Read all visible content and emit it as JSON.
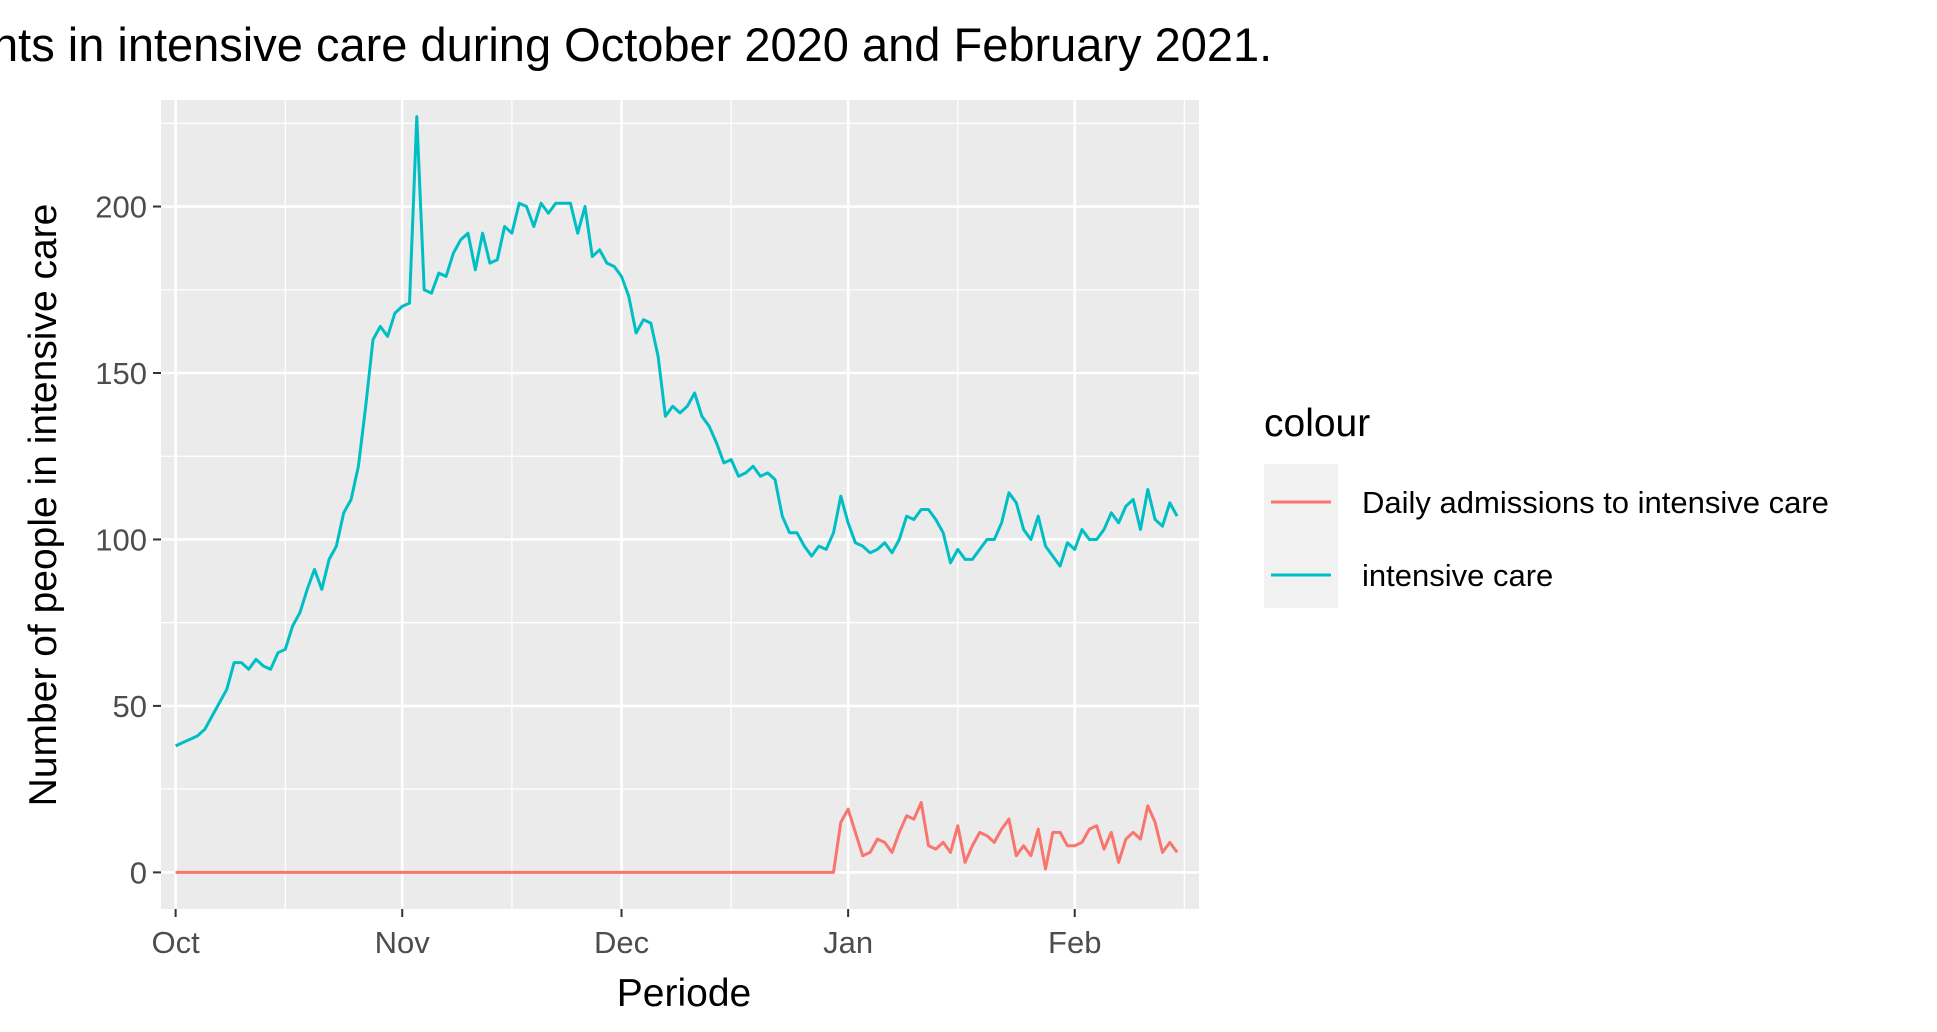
{
  "chart_data": {
    "type": "line",
    "title": "nts in intensive care during October 2020 and February 2021.",
    "xlabel": "Periode",
    "ylabel": "Number of people in intensive care",
    "x_type": "date",
    "xlim": [
      "2020-09-29",
      "2021-02-18"
    ],
    "ylim": [
      -11,
      232
    ],
    "x_ticks": [
      {
        "label": "Oct",
        "date": "2020-10-01"
      },
      {
        "label": "Nov",
        "date": "2020-11-01"
      },
      {
        "label": "Dec",
        "date": "2020-12-01"
      },
      {
        "label": "Jan",
        "date": "2021-01-01"
      },
      {
        "label": "Feb",
        "date": "2021-02-01"
      }
    ],
    "x_minor_dates": [
      "2020-10-16",
      "2020-11-16",
      "2020-12-16",
      "2021-01-16",
      "2021-02-16"
    ],
    "y_ticks": [
      0,
      50,
      100,
      150,
      200
    ],
    "y_minor": [
      25,
      75,
      125,
      175,
      225
    ],
    "grid": true,
    "legend": {
      "title": "colour",
      "position": "right"
    },
    "series": [
      {
        "name": "Daily admissions to intensive care",
        "color": "#F8766D",
        "points": [
          [
            "2020-10-01",
            0
          ],
          [
            "2020-12-30",
            0
          ],
          [
            "2020-12-31",
            15
          ],
          [
            "2021-01-01",
            19
          ],
          [
            "2021-01-02",
            12
          ],
          [
            "2021-01-03",
            5
          ],
          [
            "2021-01-04",
            6
          ],
          [
            "2021-01-05",
            10
          ],
          [
            "2021-01-06",
            9
          ],
          [
            "2021-01-07",
            6
          ],
          [
            "2021-01-08",
            12
          ],
          [
            "2021-01-09",
            17
          ],
          [
            "2021-01-10",
            16
          ],
          [
            "2021-01-11",
            21
          ],
          [
            "2021-01-12",
            8
          ],
          [
            "2021-01-13",
            7
          ],
          [
            "2021-01-14",
            9
          ],
          [
            "2021-01-15",
            6
          ],
          [
            "2021-01-16",
            14
          ],
          [
            "2021-01-17",
            3
          ],
          [
            "2021-01-18",
            8
          ],
          [
            "2021-01-19",
            12
          ],
          [
            "2021-01-20",
            11
          ],
          [
            "2021-01-21",
            9
          ],
          [
            "2021-01-22",
            13
          ],
          [
            "2021-01-23",
            16
          ],
          [
            "2021-01-24",
            5
          ],
          [
            "2021-01-25",
            8
          ],
          [
            "2021-01-26",
            5
          ],
          [
            "2021-01-27",
            13
          ],
          [
            "2021-01-28",
            1
          ],
          [
            "2021-01-29",
            12
          ],
          [
            "2021-01-30",
            12
          ],
          [
            "2021-01-31",
            8
          ],
          [
            "2021-02-01",
            8
          ],
          [
            "2021-02-02",
            9
          ],
          [
            "2021-02-03",
            13
          ],
          [
            "2021-02-04",
            14
          ],
          [
            "2021-02-05",
            7
          ],
          [
            "2021-02-06",
            12
          ],
          [
            "2021-02-07",
            3
          ],
          [
            "2021-02-08",
            10
          ],
          [
            "2021-02-09",
            12
          ],
          [
            "2021-02-10",
            10
          ],
          [
            "2021-02-11",
            20
          ],
          [
            "2021-02-12",
            15
          ],
          [
            "2021-02-13",
            6
          ],
          [
            "2021-02-14",
            9
          ],
          [
            "2021-02-15",
            6
          ]
        ]
      },
      {
        "name": "intensive care",
        "color": "#00BFC4",
        "points": [
          [
            "2020-10-01",
            38
          ],
          [
            "2020-10-02",
            39
          ],
          [
            "2020-10-03",
            40
          ],
          [
            "2020-10-04",
            41
          ],
          [
            "2020-10-05",
            43
          ],
          [
            "2020-10-06",
            47
          ],
          [
            "2020-10-07",
            51
          ],
          [
            "2020-10-08",
            55
          ],
          [
            "2020-10-09",
            63
          ],
          [
            "2020-10-10",
            63
          ],
          [
            "2020-10-11",
            61
          ],
          [
            "2020-10-12",
            64
          ],
          [
            "2020-10-13",
            62
          ],
          [
            "2020-10-14",
            61
          ],
          [
            "2020-10-15",
            66
          ],
          [
            "2020-10-16",
            67
          ],
          [
            "2020-10-17",
            74
          ],
          [
            "2020-10-18",
            78
          ],
          [
            "2020-10-19",
            85
          ],
          [
            "2020-10-20",
            91
          ],
          [
            "2020-10-21",
            85
          ],
          [
            "2020-10-22",
            94
          ],
          [
            "2020-10-23",
            98
          ],
          [
            "2020-10-24",
            108
          ],
          [
            "2020-10-25",
            112
          ],
          [
            "2020-10-26",
            122
          ],
          [
            "2020-10-27",
            140
          ],
          [
            "2020-10-28",
            160
          ],
          [
            "2020-10-29",
            164
          ],
          [
            "2020-10-30",
            161
          ],
          [
            "2020-10-31",
            168
          ],
          [
            "2020-11-01",
            170
          ],
          [
            "2020-11-02",
            171
          ],
          [
            "2020-11-03",
            227
          ],
          [
            "2020-11-04",
            175
          ],
          [
            "2020-11-05",
            174
          ],
          [
            "2020-11-06",
            180
          ],
          [
            "2020-11-07",
            179
          ],
          [
            "2020-11-08",
            186
          ],
          [
            "2020-11-09",
            190
          ],
          [
            "2020-11-10",
            192
          ],
          [
            "2020-11-11",
            181
          ],
          [
            "2020-11-12",
            192
          ],
          [
            "2020-11-13",
            183
          ],
          [
            "2020-11-14",
            184
          ],
          [
            "2020-11-15",
            194
          ],
          [
            "2020-11-16",
            192
          ],
          [
            "2020-11-17",
            201
          ],
          [
            "2020-11-18",
            200
          ],
          [
            "2020-11-19",
            194
          ],
          [
            "2020-11-20",
            201
          ],
          [
            "2020-11-21",
            198
          ],
          [
            "2020-11-22",
            201
          ],
          [
            "2020-11-23",
            201
          ],
          [
            "2020-11-24",
            201
          ],
          [
            "2020-11-25",
            192
          ],
          [
            "2020-11-26",
            200
          ],
          [
            "2020-11-27",
            185
          ],
          [
            "2020-11-28",
            187
          ],
          [
            "2020-11-29",
            183
          ],
          [
            "2020-11-30",
            182
          ],
          [
            "2020-12-01",
            179
          ],
          [
            "2020-12-02",
            173
          ],
          [
            "2020-12-03",
            162
          ],
          [
            "2020-12-04",
            166
          ],
          [
            "2020-12-05",
            165
          ],
          [
            "2020-12-06",
            155
          ],
          [
            "2020-12-07",
            137
          ],
          [
            "2020-12-08",
            140
          ],
          [
            "2020-12-09",
            138
          ],
          [
            "2020-12-10",
            140
          ],
          [
            "2020-12-11",
            144
          ],
          [
            "2020-12-12",
            137
          ],
          [
            "2020-12-13",
            134
          ],
          [
            "2020-12-14",
            129
          ],
          [
            "2020-12-15",
            123
          ],
          [
            "2020-12-16",
            124
          ],
          [
            "2020-12-17",
            119
          ],
          [
            "2020-12-18",
            120
          ],
          [
            "2020-12-19",
            122
          ],
          [
            "2020-12-20",
            119
          ],
          [
            "2020-12-21",
            120
          ],
          [
            "2020-12-22",
            118
          ],
          [
            "2020-12-23",
            107
          ],
          [
            "2020-12-24",
            102
          ],
          [
            "2020-12-25",
            102
          ],
          [
            "2020-12-26",
            98
          ],
          [
            "2020-12-27",
            95
          ],
          [
            "2020-12-28",
            98
          ],
          [
            "2020-12-29",
            97
          ],
          [
            "2020-12-30",
            102
          ],
          [
            "2020-12-31",
            113
          ],
          [
            "2021-01-01",
            105
          ],
          [
            "2021-01-02",
            99
          ],
          [
            "2021-01-03",
            98
          ],
          [
            "2021-01-04",
            96
          ],
          [
            "2021-01-05",
            97
          ],
          [
            "2021-01-06",
            99
          ],
          [
            "2021-01-07",
            96
          ],
          [
            "2021-01-08",
            100
          ],
          [
            "2021-01-09",
            107
          ],
          [
            "2021-01-10",
            106
          ],
          [
            "2021-01-11",
            109
          ],
          [
            "2021-01-12",
            109
          ],
          [
            "2021-01-13",
            106
          ],
          [
            "2021-01-14",
            102
          ],
          [
            "2021-01-15",
            93
          ],
          [
            "2021-01-16",
            97
          ],
          [
            "2021-01-17",
            94
          ],
          [
            "2021-01-18",
            94
          ],
          [
            "2021-01-19",
            97
          ],
          [
            "2021-01-20",
            100
          ],
          [
            "2021-01-21",
            100
          ],
          [
            "2021-01-22",
            105
          ],
          [
            "2021-01-23",
            114
          ],
          [
            "2021-01-24",
            111
          ],
          [
            "2021-01-25",
            103
          ],
          [
            "2021-01-26",
            100
          ],
          [
            "2021-01-27",
            107
          ],
          [
            "2021-01-28",
            98
          ],
          [
            "2021-01-29",
            95
          ],
          [
            "2021-01-30",
            92
          ],
          [
            "2021-01-31",
            99
          ],
          [
            "2021-02-01",
            97
          ],
          [
            "2021-02-02",
            103
          ],
          [
            "2021-02-03",
            100
          ],
          [
            "2021-02-04",
            100
          ],
          [
            "2021-02-05",
            103
          ],
          [
            "2021-02-06",
            108
          ],
          [
            "2021-02-07",
            105
          ],
          [
            "2021-02-08",
            110
          ],
          [
            "2021-02-09",
            112
          ],
          [
            "2021-02-10",
            103
          ],
          [
            "2021-02-11",
            115
          ],
          [
            "2021-02-12",
            106
          ],
          [
            "2021-02-13",
            104
          ],
          [
            "2021-02-14",
            111
          ],
          [
            "2021-02-15",
            107
          ]
        ]
      }
    ]
  }
}
